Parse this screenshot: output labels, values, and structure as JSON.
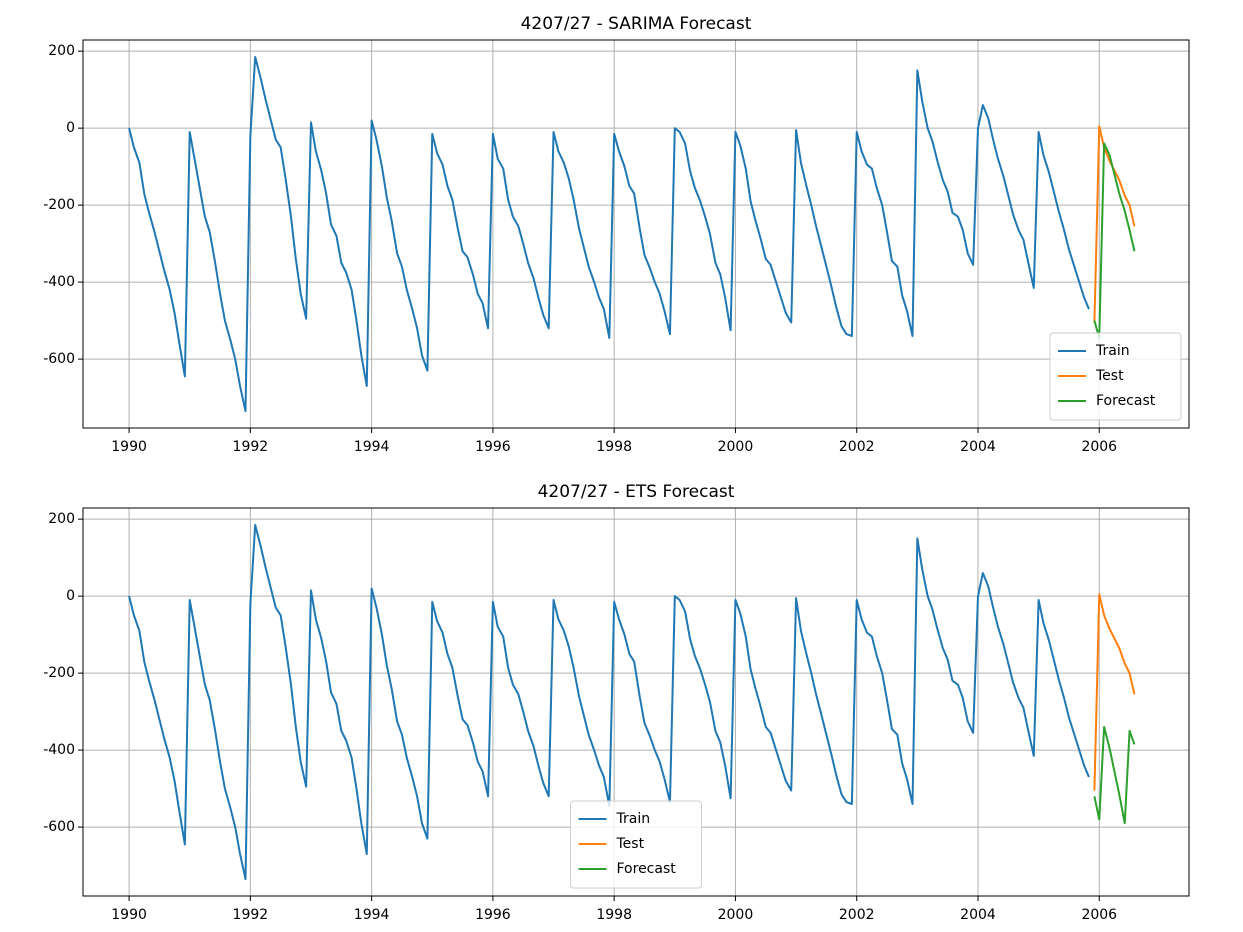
{
  "chart_data": [
    {
      "type": "line",
      "title": "4207/27 - SARIMA Forecast",
      "grid": true,
      "legend_loc": "lower right",
      "xlim": [
        1989.24,
        2007.48
      ],
      "xticks": [
        1990,
        1992,
        1994,
        1996,
        1998,
        2000,
        2002,
        2004,
        2006
      ],
      "ylim": [
        -779,
        229
      ],
      "yticks": [
        -600,
        -400,
        -200,
        0,
        200
      ],
      "series": [
        {
          "name": "Train",
          "color": "#1f77b4",
          "x": [
            1990,
            1990.08,
            1990.17,
            1990.25,
            1990.33,
            1990.42,
            1990.5,
            1990.58,
            1990.67,
            1990.75,
            1990.83,
            1990.92,
            1991,
            1991.08,
            1991.17,
            1991.25,
            1991.33,
            1991.42,
            1991.5,
            1991.58,
            1991.67,
            1991.75,
            1991.83,
            1991.92,
            1992,
            1992.08,
            1992.17,
            1992.25,
            1992.33,
            1992.42,
            1992.5,
            1992.58,
            1992.67,
            1992.75,
            1992.83,
            1992.92,
            1993,
            1993.08,
            1993.17,
            1993.25,
            1993.33,
            1993.42,
            1993.5,
            1993.58,
            1993.67,
            1993.75,
            1993.83,
            1993.92,
            1994,
            1994.08,
            1994.17,
            1994.25,
            1994.33,
            1994.42,
            1994.5,
            1994.58,
            1994.67,
            1994.75,
            1994.83,
            1994.92,
            1995,
            1995.08,
            1995.17,
            1995.25,
            1995.33,
            1995.42,
            1995.5,
            1995.58,
            1995.67,
            1995.75,
            1995.83,
            1995.92,
            1996,
            1996.08,
            1996.17,
            1996.25,
            1996.33,
            1996.42,
            1996.5,
            1996.58,
            1996.67,
            1996.75,
            1996.83,
            1996.92,
            1997,
            1997.08,
            1997.17,
            1997.25,
            1997.33,
            1997.42,
            1997.5,
            1997.58,
            1997.67,
            1997.75,
            1997.83,
            1997.92,
            1998,
            1998.08,
            1998.17,
            1998.25,
            1998.33,
            1998.42,
            1998.5,
            1998.58,
            1998.67,
            1998.75,
            1998.83,
            1998.92,
            1999,
            1999.08,
            1999.17,
            1999.25,
            1999.33,
            1999.42,
            1999.5,
            1999.58,
            1999.67,
            1999.75,
            1999.83,
            1999.92,
            2000,
            2000.08,
            2000.17,
            2000.25,
            2000.33,
            2000.42,
            2000.5,
            2000.58,
            2000.67,
            2000.75,
            2000.83,
            2000.92,
            2001,
            2001.08,
            2001.17,
            2001.25,
            2001.33,
            2001.42,
            2001.5,
            2001.58,
            2001.67,
            2001.75,
            2001.83,
            2001.92,
            2002,
            2002.08,
            2002.17,
            2002.25,
            2002.33,
            2002.42,
            2002.5,
            2002.58,
            2002.67,
            2002.75,
            2002.83,
            2002.92,
            2003,
            2003.08,
            2003.17,
            2003.25,
            2003.33,
            2003.42,
            2003.5,
            2003.58,
            2003.67,
            2003.75,
            2003.83,
            2003.92,
            2004,
            2004.08,
            2004.17,
            2004.25,
            2004.33,
            2004.42,
            2004.5,
            2004.58,
            2004.67,
            2004.75,
            2004.83,
            2004.92,
            2005,
            2005.08,
            2005.17,
            2005.25,
            2005.33,
            2005.42,
            2005.5,
            2005.58,
            2005.67,
            2005.75,
            2005.83
          ],
          "values": [
            0,
            -50,
            -90,
            -170,
            -220,
            -270,
            -320,
            -370,
            -420,
            -480,
            -560,
            -645,
            -10,
            -80,
            -160,
            -230,
            -270,
            -350,
            -430,
            -500,
            -550,
            -600,
            -670,
            -735,
            -20,
            185,
            130,
            75,
            25,
            -30,
            -50,
            -130,
            -230,
            -340,
            -430,
            -495,
            15,
            -60,
            -110,
            -170,
            -250,
            -280,
            -350,
            -375,
            -420,
            -500,
            -590,
            -670,
            20,
            -30,
            -100,
            -180,
            -240,
            -325,
            -360,
            -420,
            -470,
            -520,
            -590,
            -630,
            -15,
            -65,
            -95,
            -150,
            -185,
            -260,
            -320,
            -335,
            -380,
            -430,
            -455,
            -520,
            -15,
            -80,
            -105,
            -185,
            -230,
            -255,
            -300,
            -350,
            -390,
            -440,
            -485,
            -520,
            -10,
            -60,
            -90,
            -130,
            -185,
            -260,
            -310,
            -360,
            -400,
            -440,
            -470,
            -545,
            -15,
            -60,
            -100,
            -150,
            -170,
            -260,
            -330,
            -360,
            -400,
            -430,
            -475,
            -535,
            0,
            -10,
            -40,
            -110,
            -155,
            -190,
            -230,
            -275,
            -350,
            -380,
            -440,
            -525,
            -10,
            -45,
            -105,
            -190,
            -240,
            -290,
            -340,
            -355,
            -400,
            -440,
            -480,
            -505,
            -5,
            -90,
            -150,
            -200,
            -255,
            -310,
            -360,
            -410,
            -470,
            -515,
            -535,
            -540,
            -10,
            -60,
            -95,
            -105,
            -155,
            -200,
            -270,
            -345,
            -360,
            -435,
            -475,
            -540,
            150,
            70,
            0,
            -35,
            -85,
            -135,
            -165,
            -220,
            -230,
            -265,
            -325,
            -355,
            0,
            60,
            25,
            -30,
            -80,
            -125,
            -175,
            -225,
            -265,
            -290,
            -350,
            -415,
            -10,
            -70,
            -115,
            -165,
            -215,
            -265,
            -315,
            -355,
            -400,
            -440,
            -470
          ]
        },
        {
          "name": "Test",
          "color": "#ff7f0e",
          "x": [
            2005.92,
            2006,
            2006.08,
            2006.17,
            2006.25,
            2006.33,
            2006.42,
            2006.5,
            2006.58
          ],
          "values": [
            -505,
            5,
            -50,
            -85,
            -110,
            -135,
            -175,
            -200,
            -255
          ]
        },
        {
          "name": "Forecast",
          "color": "#2ca02c",
          "x": [
            2005.92,
            2006,
            2006.08,
            2006.17,
            2006.25,
            2006.33,
            2006.42,
            2006.5,
            2006.58
          ],
          "values": [
            -500,
            -545,
            -40,
            -70,
            -120,
            -170,
            -215,
            -265,
            -320
          ]
        }
      ]
    },
    {
      "type": "line",
      "title": "4207/27 - ETS Forecast",
      "grid": true,
      "legend_loc": "lower center",
      "xlim": [
        1989.24,
        2007.48
      ],
      "xticks": [
        1990,
        1992,
        1994,
        1996,
        1998,
        2000,
        2002,
        2004,
        2006
      ],
      "ylim": [
        -779,
        229
      ],
      "yticks": [
        -600,
        -400,
        -200,
        0,
        200
      ],
      "series": [
        {
          "name": "Train",
          "color": "#1f77b4",
          "x": [
            1990,
            1990.08,
            1990.17,
            1990.25,
            1990.33,
            1990.42,
            1990.5,
            1990.58,
            1990.67,
            1990.75,
            1990.83,
            1990.92,
            1991,
            1991.08,
            1991.17,
            1991.25,
            1991.33,
            1991.42,
            1991.5,
            1991.58,
            1991.67,
            1991.75,
            1991.83,
            1991.92,
            1992,
            1992.08,
            1992.17,
            1992.25,
            1992.33,
            1992.42,
            1992.5,
            1992.58,
            1992.67,
            1992.75,
            1992.83,
            1992.92,
            1993,
            1993.08,
            1993.17,
            1993.25,
            1993.33,
            1993.42,
            1993.5,
            1993.58,
            1993.67,
            1993.75,
            1993.83,
            1993.92,
            1994,
            1994.08,
            1994.17,
            1994.25,
            1994.33,
            1994.42,
            1994.5,
            1994.58,
            1994.67,
            1994.75,
            1994.83,
            1994.92,
            1995,
            1995.08,
            1995.17,
            1995.25,
            1995.33,
            1995.42,
            1995.5,
            1995.58,
            1995.67,
            1995.75,
            1995.83,
            1995.92,
            1996,
            1996.08,
            1996.17,
            1996.25,
            1996.33,
            1996.42,
            1996.5,
            1996.58,
            1996.67,
            1996.75,
            1996.83,
            1996.92,
            1997,
            1997.08,
            1997.17,
            1997.25,
            1997.33,
            1997.42,
            1997.5,
            1997.58,
            1997.67,
            1997.75,
            1997.83,
            1997.92,
            1998,
            1998.08,
            1998.17,
            1998.25,
            1998.33,
            1998.42,
            1998.5,
            1998.58,
            1998.67,
            1998.75,
            1998.83,
            1998.92,
            1999,
            1999.08,
            1999.17,
            1999.25,
            1999.33,
            1999.42,
            1999.5,
            1999.58,
            1999.67,
            1999.75,
            1999.83,
            1999.92,
            2000,
            2000.08,
            2000.17,
            2000.25,
            2000.33,
            2000.42,
            2000.5,
            2000.58,
            2000.67,
            2000.75,
            2000.83,
            2000.92,
            2001,
            2001.08,
            2001.17,
            2001.25,
            2001.33,
            2001.42,
            2001.5,
            2001.58,
            2001.67,
            2001.75,
            2001.83,
            2001.92,
            2002,
            2002.08,
            2002.17,
            2002.25,
            2002.33,
            2002.42,
            2002.5,
            2002.58,
            2002.67,
            2002.75,
            2002.83,
            2002.92,
            2003,
            2003.08,
            2003.17,
            2003.25,
            2003.33,
            2003.42,
            2003.5,
            2003.58,
            2003.67,
            2003.75,
            2003.83,
            2003.92,
            2004,
            2004.08,
            2004.17,
            2004.25,
            2004.33,
            2004.42,
            2004.5,
            2004.58,
            2004.67,
            2004.75,
            2004.83,
            2004.92,
            2005,
            2005.08,
            2005.17,
            2005.25,
            2005.33,
            2005.42,
            2005.5,
            2005.58,
            2005.67,
            2005.75,
            2005.83
          ],
          "values": [
            0,
            -50,
            -90,
            -170,
            -220,
            -270,
            -320,
            -370,
            -420,
            -480,
            -560,
            -645,
            -10,
            -80,
            -160,
            -230,
            -270,
            -350,
            -430,
            -500,
            -550,
            -600,
            -670,
            -735,
            -20,
            185,
            130,
            75,
            25,
            -30,
            -50,
            -130,
            -230,
            -340,
            -430,
            -495,
            15,
            -60,
            -110,
            -170,
            -250,
            -280,
            -350,
            -375,
            -420,
            -500,
            -590,
            -670,
            20,
            -30,
            -100,
            -180,
            -240,
            -325,
            -360,
            -420,
            -470,
            -520,
            -590,
            -630,
            -15,
            -65,
            -95,
            -150,
            -185,
            -260,
            -320,
            -335,
            -380,
            -430,
            -455,
            -520,
            -15,
            -80,
            -105,
            -185,
            -230,
            -255,
            -300,
            -350,
            -390,
            -440,
            -485,
            -520,
            -10,
            -60,
            -90,
            -130,
            -185,
            -260,
            -310,
            -360,
            -400,
            -440,
            -470,
            -545,
            -15,
            -60,
            -100,
            -150,
            -170,
            -260,
            -330,
            -360,
            -400,
            -430,
            -475,
            -535,
            0,
            -10,
            -40,
            -110,
            -155,
            -190,
            -230,
            -275,
            -350,
            -380,
            -440,
            -525,
            -10,
            -45,
            -105,
            -190,
            -240,
            -290,
            -340,
            -355,
            -400,
            -440,
            -480,
            -505,
            -5,
            -90,
            -150,
            -200,
            -255,
            -310,
            -360,
            -410,
            -470,
            -515,
            -535,
            -540,
            -10,
            -60,
            -95,
            -105,
            -155,
            -200,
            -270,
            -345,
            -360,
            -435,
            -475,
            -540,
            150,
            70,
            0,
            -35,
            -85,
            -135,
            -165,
            -220,
            -230,
            -265,
            -325,
            -355,
            0,
            60,
            25,
            -30,
            -80,
            -125,
            -175,
            -225,
            -265,
            -290,
            -350,
            -415,
            -10,
            -70,
            -115,
            -165,
            -215,
            -265,
            -315,
            -355,
            -400,
            -440,
            -470
          ]
        },
        {
          "name": "Test",
          "color": "#ff7f0e",
          "x": [
            2005.92,
            2006,
            2006.08,
            2006.17,
            2006.25,
            2006.33,
            2006.42,
            2006.5,
            2006.58
          ],
          "values": [
            -505,
            5,
            -50,
            -85,
            -110,
            -135,
            -175,
            -200,
            -255
          ]
        },
        {
          "name": "Forecast",
          "color": "#2ca02c",
          "x": [
            2005.92,
            2006,
            2006.08,
            2006.17,
            2006.25,
            2006.33,
            2006.42,
            2006.5,
            2006.58
          ],
          "values": [
            -520,
            -580,
            -340,
            -395,
            -455,
            -515,
            -590,
            -350,
            -385
          ]
        }
      ]
    }
  ]
}
